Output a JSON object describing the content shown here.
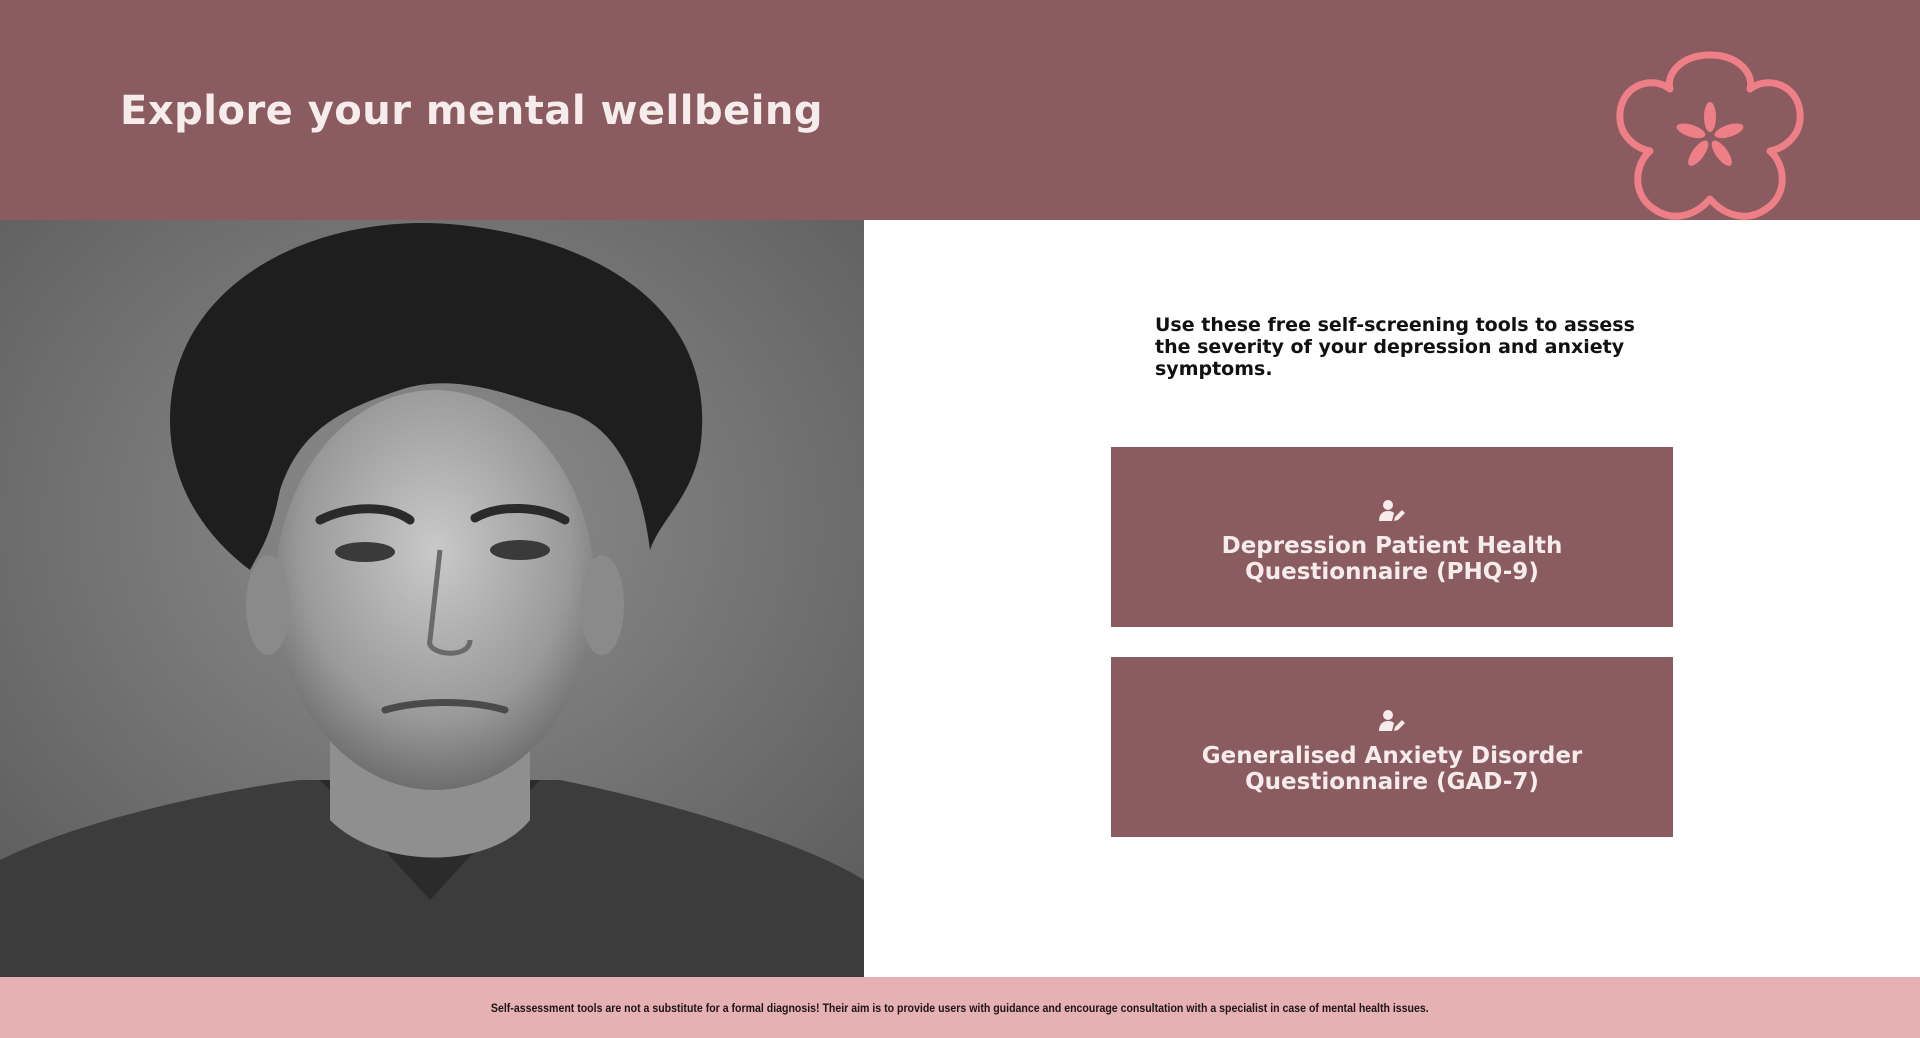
{
  "header": {
    "title": "Explore your mental wellbeing",
    "logo_icon": "flower-asterisk-icon",
    "background": "#8b5c5f",
    "accent": "#ef7f86"
  },
  "hero_image": {
    "icon": "portrait-photo"
  },
  "intro": {
    "text": "Use these free self-screening tools to assess the severity of your depression and anxiety symptoms."
  },
  "tools": [
    {
      "icon": "user-edit-icon",
      "label": "Depression Patient Health Questionnaire (PHQ-9)"
    },
    {
      "icon": "user-edit-icon",
      "label": "Generalised Anxiety Disorder Questionnaire (GAD-7)"
    }
  ],
  "footer": {
    "disclaimer": "Self-assessment tools are not a substitute for a formal diagnosis! Their aim is to provide users with guidance and encourage consultation with a specialist in case of mental health issues.",
    "background": "#e6b1b2"
  }
}
